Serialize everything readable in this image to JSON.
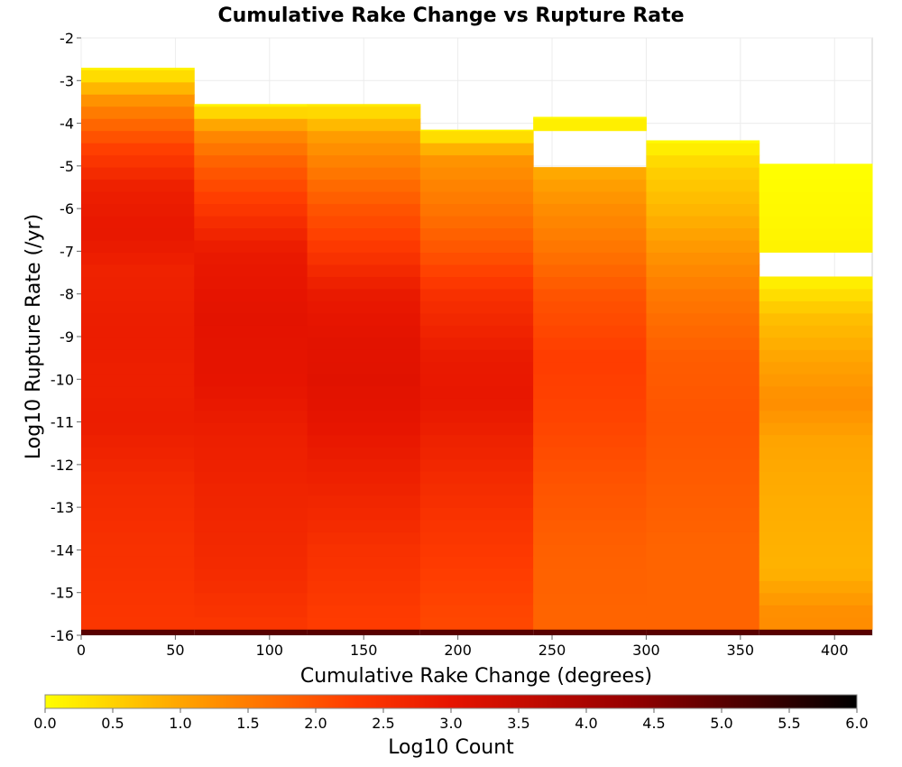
{
  "chart_data": {
    "type": "heatmap",
    "title": "Cumulative Rake Change vs Rupture Rate",
    "xlabel": "Cumulative Rake Change (degrees)",
    "ylabel": "Log10 Rupture Rate (/yr)",
    "xlim": [
      0,
      420
    ],
    "ylim": [
      -16,
      -2
    ],
    "x_ticks": [
      "0",
      "50",
      "100",
      "150",
      "200",
      "250",
      "300",
      "350",
      "400"
    ],
    "y_ticks": [
      "-2",
      "-3",
      "-4",
      "-5",
      "-6",
      "-7",
      "-8",
      "-9",
      "-10",
      "-11",
      "-12",
      "-13",
      "-14",
      "-15",
      "-16"
    ],
    "x_bin_edges": [
      0,
      60,
      120,
      180,
      240,
      300,
      360,
      420
    ],
    "y_bin_size": 0.285,
    "y_bin_base": -16,
    "bottom_row_value": 5.0,
    "columns": [
      {
        "x_range": [
          0,
          60
        ],
        "y_range": [
          -16,
          -2.7
        ],
        "rate_profile": [
          [
            -2.7,
            0.1
          ],
          [
            -3.5,
            1.3
          ],
          [
            -4.5,
            2.2
          ],
          [
            -5.5,
            2.8
          ],
          [
            -6.5,
            2.95
          ],
          [
            -7.5,
            2.75
          ],
          [
            -9.0,
            2.85
          ],
          [
            -10.0,
            2.8
          ],
          [
            -11.0,
            2.85
          ],
          [
            -12.5,
            2.6
          ],
          [
            -14.0,
            2.5
          ],
          [
            -15.8,
            2.4
          ]
        ]
      },
      {
        "x_range": [
          60,
          120
        ],
        "y_range": [
          -16,
          -3.55
        ],
        "rate_profile": [
          [
            -3.55,
            0.1
          ],
          [
            -4.2,
            1.3
          ],
          [
            -5.0,
            1.9
          ],
          [
            -6.0,
            2.4
          ],
          [
            -7.0,
            2.9
          ],
          [
            -8.5,
            3.05
          ],
          [
            -10.0,
            3.0
          ],
          [
            -11.5,
            2.8
          ],
          [
            -13.0,
            2.7
          ],
          [
            -14.5,
            2.6
          ],
          [
            -15.8,
            2.4
          ]
        ]
      },
      {
        "x_range": [
          120,
          180
        ],
        "y_range": [
          -16,
          -3.55
        ],
        "rate_profile": [
          [
            -3.55,
            0.2
          ],
          [
            -4.3,
            1.1
          ],
          [
            -5.0,
            1.5
          ],
          [
            -6.0,
            2.0
          ],
          [
            -7.0,
            2.4
          ],
          [
            -8.0,
            2.9
          ],
          [
            -9.0,
            3.05
          ],
          [
            -10.0,
            3.1
          ],
          [
            -11.0,
            3.0
          ],
          [
            -12.5,
            2.75
          ],
          [
            -14.0,
            2.5
          ],
          [
            -15.8,
            2.3
          ]
        ]
      },
      {
        "x_range": [
          180,
          240
        ],
        "y_range": [
          -16,
          -4.15
        ],
        "rate_profile": [
          [
            -4.15,
            0.1
          ],
          [
            -4.8,
            1.2
          ],
          [
            -6.0,
            1.6
          ],
          [
            -7.0,
            2.0
          ],
          [
            -8.0,
            2.5
          ],
          [
            -9.5,
            2.9
          ],
          [
            -10.5,
            2.95
          ],
          [
            -11.5,
            2.75
          ],
          [
            -13.0,
            2.5
          ],
          [
            -14.5,
            2.3
          ],
          [
            -15.8,
            2.15
          ]
        ]
      },
      {
        "x_range": [
          240,
          300
        ],
        "y_range": [
          -16,
          -3.85
        ],
        "gaps": [
          [
            -4.95,
            -4.15
          ]
        ],
        "rate_profile": [
          [
            -3.85,
            0.05
          ],
          [
            -5.0,
            0.9
          ],
          [
            -6.0,
            1.3
          ],
          [
            -7.0,
            1.6
          ],
          [
            -8.0,
            2.0
          ],
          [
            -9.5,
            2.3
          ],
          [
            -11.0,
            2.2
          ],
          [
            -12.5,
            2.0
          ],
          [
            -14.0,
            1.85
          ],
          [
            -15.8,
            1.8
          ]
        ]
      },
      {
        "x_range": [
          300,
          360
        ],
        "y_range": [
          -16,
          -4.4
        ],
        "rate_profile": [
          [
            -4.4,
            0.05
          ],
          [
            -5.0,
            0.5
          ],
          [
            -6.0,
            0.8
          ],
          [
            -7.0,
            1.2
          ],
          [
            -8.0,
            1.55
          ],
          [
            -9.5,
            1.9
          ],
          [
            -11.0,
            2.0
          ],
          [
            -12.5,
            1.9
          ],
          [
            -14.0,
            1.8
          ],
          [
            -15.8,
            1.8
          ]
        ]
      },
      {
        "x_range": [
          360,
          420
        ],
        "y_range": [
          -16,
          -4.95
        ],
        "gaps": [
          [
            -7.6,
            -7.0
          ]
        ],
        "rate_profile": [
          [
            -4.95,
            0.0
          ],
          [
            -6.5,
            0.1
          ],
          [
            -7.0,
            0.15
          ],
          [
            -7.6,
            0.1
          ],
          [
            -8.5,
            0.7
          ],
          [
            -9.5,
            1.0
          ],
          [
            -10.5,
            1.3
          ],
          [
            -11.5,
            1.0
          ],
          [
            -13.0,
            0.9
          ],
          [
            -14.5,
            0.85
          ],
          [
            -15.5,
            1.3
          ]
        ]
      }
    ],
    "colorbar": {
      "label": "Log10 Count",
      "range": [
        0.0,
        6.0
      ],
      "ticks": [
        "0.0",
        "0.5",
        "1.0",
        "1.5",
        "2.0",
        "2.5",
        "3.0",
        "3.5",
        "4.0",
        "4.5",
        "5.0",
        "5.5",
        "6.0"
      ],
      "colors": [
        "#ffff00",
        "#ffa500",
        "#ff3c00",
        "#e61400",
        "#960000",
        "#000000"
      ]
    },
    "grid": true,
    "legend": "colorbar-bottom"
  }
}
